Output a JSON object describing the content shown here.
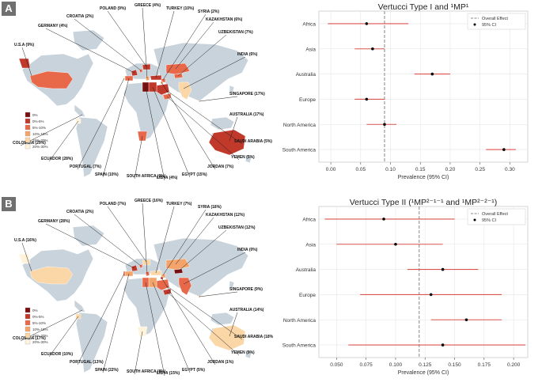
{
  "colors": {
    "ocean": "#ffffff",
    "land": "#c9d3db",
    "ci_line": "#d9534f",
    "point": "#000000",
    "overall": "#888888",
    "grid": "#e6e6e6"
  },
  "panels": [
    {
      "tag": "A",
      "legend_title": "",
      "legend_items": [
        {
          "label": "0%",
          "color": "#7a0f0f"
        },
        {
          "label": "0%-5%",
          "color": "#c0392b"
        },
        {
          "label": "5%-10%",
          "color": "#e8684a"
        },
        {
          "label": "10%-15%",
          "color": "#f4a46a"
        },
        {
          "label": "15%-20%",
          "color": "#fbd6a6"
        },
        {
          "label": "20%-30%",
          "color": "#fff3dc"
        }
      ],
      "countries": [
        {
          "label": "U.S.A (9%)",
          "color": "#e8684a"
        },
        {
          "label": "GERMANY (4%)",
          "color": "#c0392b"
        },
        {
          "label": "CROATIA (2%)",
          "color": "#c0392b"
        },
        {
          "label": "POLAND (9%)",
          "color": "#e8684a"
        },
        {
          "label": "GREECE (4%)",
          "color": "#c0392b"
        },
        {
          "label": "TURKEY (10%)",
          "color": "#f4a46a"
        },
        {
          "label": "SYRIA (2%)",
          "color": "#c0392b"
        },
        {
          "label": "KAZAKHSTAN (6%)",
          "color": "#e8684a"
        },
        {
          "label": "UZBEKISTAN (7%)",
          "color": "#e8684a"
        },
        {
          "label": "INDIA (6%)",
          "color": "#e8684a"
        },
        {
          "label": "SINGAPORE (17%)",
          "color": "#fbd6a6"
        },
        {
          "label": "AUSTRALIA (17%)",
          "color": "#fbd6a6"
        },
        {
          "label": "SAUDI ARABIA (5%)",
          "color": "#c0392b"
        },
        {
          "label": "YEMEN (5%)",
          "color": "#c0392b"
        },
        {
          "label": "JORDAN (7%)",
          "color": "#e8684a"
        },
        {
          "label": "EGYPT (15%)",
          "color": "#f4a46a"
        },
        {
          "label": "LIBYA (4%)",
          "color": "#c0392b"
        },
        {
          "label": "SOUTH AFRICA (0%)",
          "color": "#7a0f0f"
        },
        {
          "label": "SPAIN (10%)",
          "color": "#e8684a"
        },
        {
          "label": "PORTUGAL (7%)",
          "color": "#e8684a"
        },
        {
          "label": "ECUADOR (28%)",
          "color": "#fff3dc"
        },
        {
          "label": "COLOMBIA (29%)",
          "color": "#fff3dc"
        }
      ]
    },
    {
      "tag": "B",
      "legend_title": "",
      "legend_items": [
        {
          "label": "0%",
          "color": "#7a0f0f"
        },
        {
          "label": "0%-5%",
          "color": "#c0392b"
        },
        {
          "label": "5%-10%",
          "color": "#e8684a"
        },
        {
          "label": "10%-15%",
          "color": "#f4a46a"
        },
        {
          "label": "15%-20%",
          "color": "#fbd6a6"
        },
        {
          "label": "20%-30%",
          "color": "#fff3dc"
        }
      ],
      "countries": [
        {
          "label": "U.S.A (16%)",
          "color": "#fbd6a6"
        },
        {
          "label": "GERMANY (28%)",
          "color": "#fff3dc"
        },
        {
          "label": "CROATIA (2%)",
          "color": "#c0392b"
        },
        {
          "label": "POLAND (7%)",
          "color": "#e8684a"
        },
        {
          "label": "GREECE (16%)",
          "color": "#fbd6a6"
        },
        {
          "label": "TURKEY (7%)",
          "color": "#e8684a"
        },
        {
          "label": "SYRIA (18%)",
          "color": "#fbd6a6"
        },
        {
          "label": "KAZAKHSTAN (12%)",
          "color": "#f4a46a"
        },
        {
          "label": "UZBEKISTAN (12%)",
          "color": "#f4a46a"
        },
        {
          "label": "INDIA (0%)",
          "color": "#7a0f0f"
        },
        {
          "label": "SINGAPORE (9%)",
          "color": "#e8684a"
        },
        {
          "label": "AUSTRALIA (14%)",
          "color": "#f4a46a"
        },
        {
          "label": "SAUDI ARABIA (18%)",
          "color": "#fbd6a6"
        },
        {
          "label": "YEMEN (9%)",
          "color": "#e8684a"
        },
        {
          "label": "JORDAN (1%)",
          "color": "#c0392b"
        },
        {
          "label": "EGYPT (5%)",
          "color": "#c0392b"
        },
        {
          "label": "LIBYA (15%)",
          "color": "#f4a46a"
        },
        {
          "label": "SOUTH AFRICA (8%)",
          "color": "#e8684a"
        },
        {
          "label": "SPAIN (22%)",
          "color": "#fff3dc"
        },
        {
          "label": "PORTUGAL (13%)",
          "color": "#f4a46a"
        },
        {
          "label": "ECUADOR (10%)",
          "color": "#e8684a"
        },
        {
          "label": "COLOMBIA (17%)",
          "color": "#fbd6a6"
        }
      ]
    }
  ],
  "chart_data": [
    {
      "type": "forest",
      "title": "Vertucci Type I and ¹MP¹",
      "xlabel": "Prevalence (95% CI)",
      "categories": [
        "Africa",
        "Asia",
        "Australia",
        "Europe",
        "North America",
        "South America"
      ],
      "estimates": [
        0.06,
        0.07,
        0.17,
        0.06,
        0.09,
        0.29
      ],
      "ci_low": [
        -0.005,
        0.04,
        0.14,
        0.04,
        0.06,
        0.26
      ],
      "ci_high": [
        0.13,
        0.09,
        0.2,
        0.09,
        0.11,
        0.31
      ],
      "overall": 0.09,
      "xlim": [
        -0.02,
        0.33
      ],
      "xticks": [
        0.0,
        0.05,
        0.1,
        0.15,
        0.2,
        0.25,
        0.3
      ],
      "xtick_labels": [
        "0.00",
        "0.05",
        "0.10",
        "0.15",
        "0.20",
        "0.25",
        "0.30"
      ],
      "legend": [
        "Overall Effect",
        "95% CI"
      ]
    },
    {
      "type": "forest",
      "title": "Vertucci Type II (¹MP²⁻¹⁻¹ and ¹MP²⁻²⁻¹)",
      "xlabel": "Prevalence (95% CI)",
      "categories": [
        "Africa",
        "Asia",
        "Australia",
        "Europe",
        "North America",
        "South America"
      ],
      "estimates": [
        0.09,
        0.1,
        0.14,
        0.13,
        0.16,
        0.14
      ],
      "ci_low": [
        0.04,
        0.05,
        0.11,
        0.07,
        0.13,
        0.06
      ],
      "ci_high": [
        0.15,
        0.14,
        0.17,
        0.19,
        0.19,
        0.21
      ],
      "overall": 0.12,
      "xlim": [
        0.035,
        0.212
      ],
      "xticks": [
        0.05,
        0.075,
        0.1,
        0.125,
        0.15,
        0.175,
        0.2
      ],
      "xtick_labels": [
        "0.050",
        "0.075",
        "0.100",
        "0.125",
        "0.150",
        "0.175",
        "0.200"
      ],
      "legend": [
        "Overall Effect",
        "95% CI"
      ]
    }
  ]
}
